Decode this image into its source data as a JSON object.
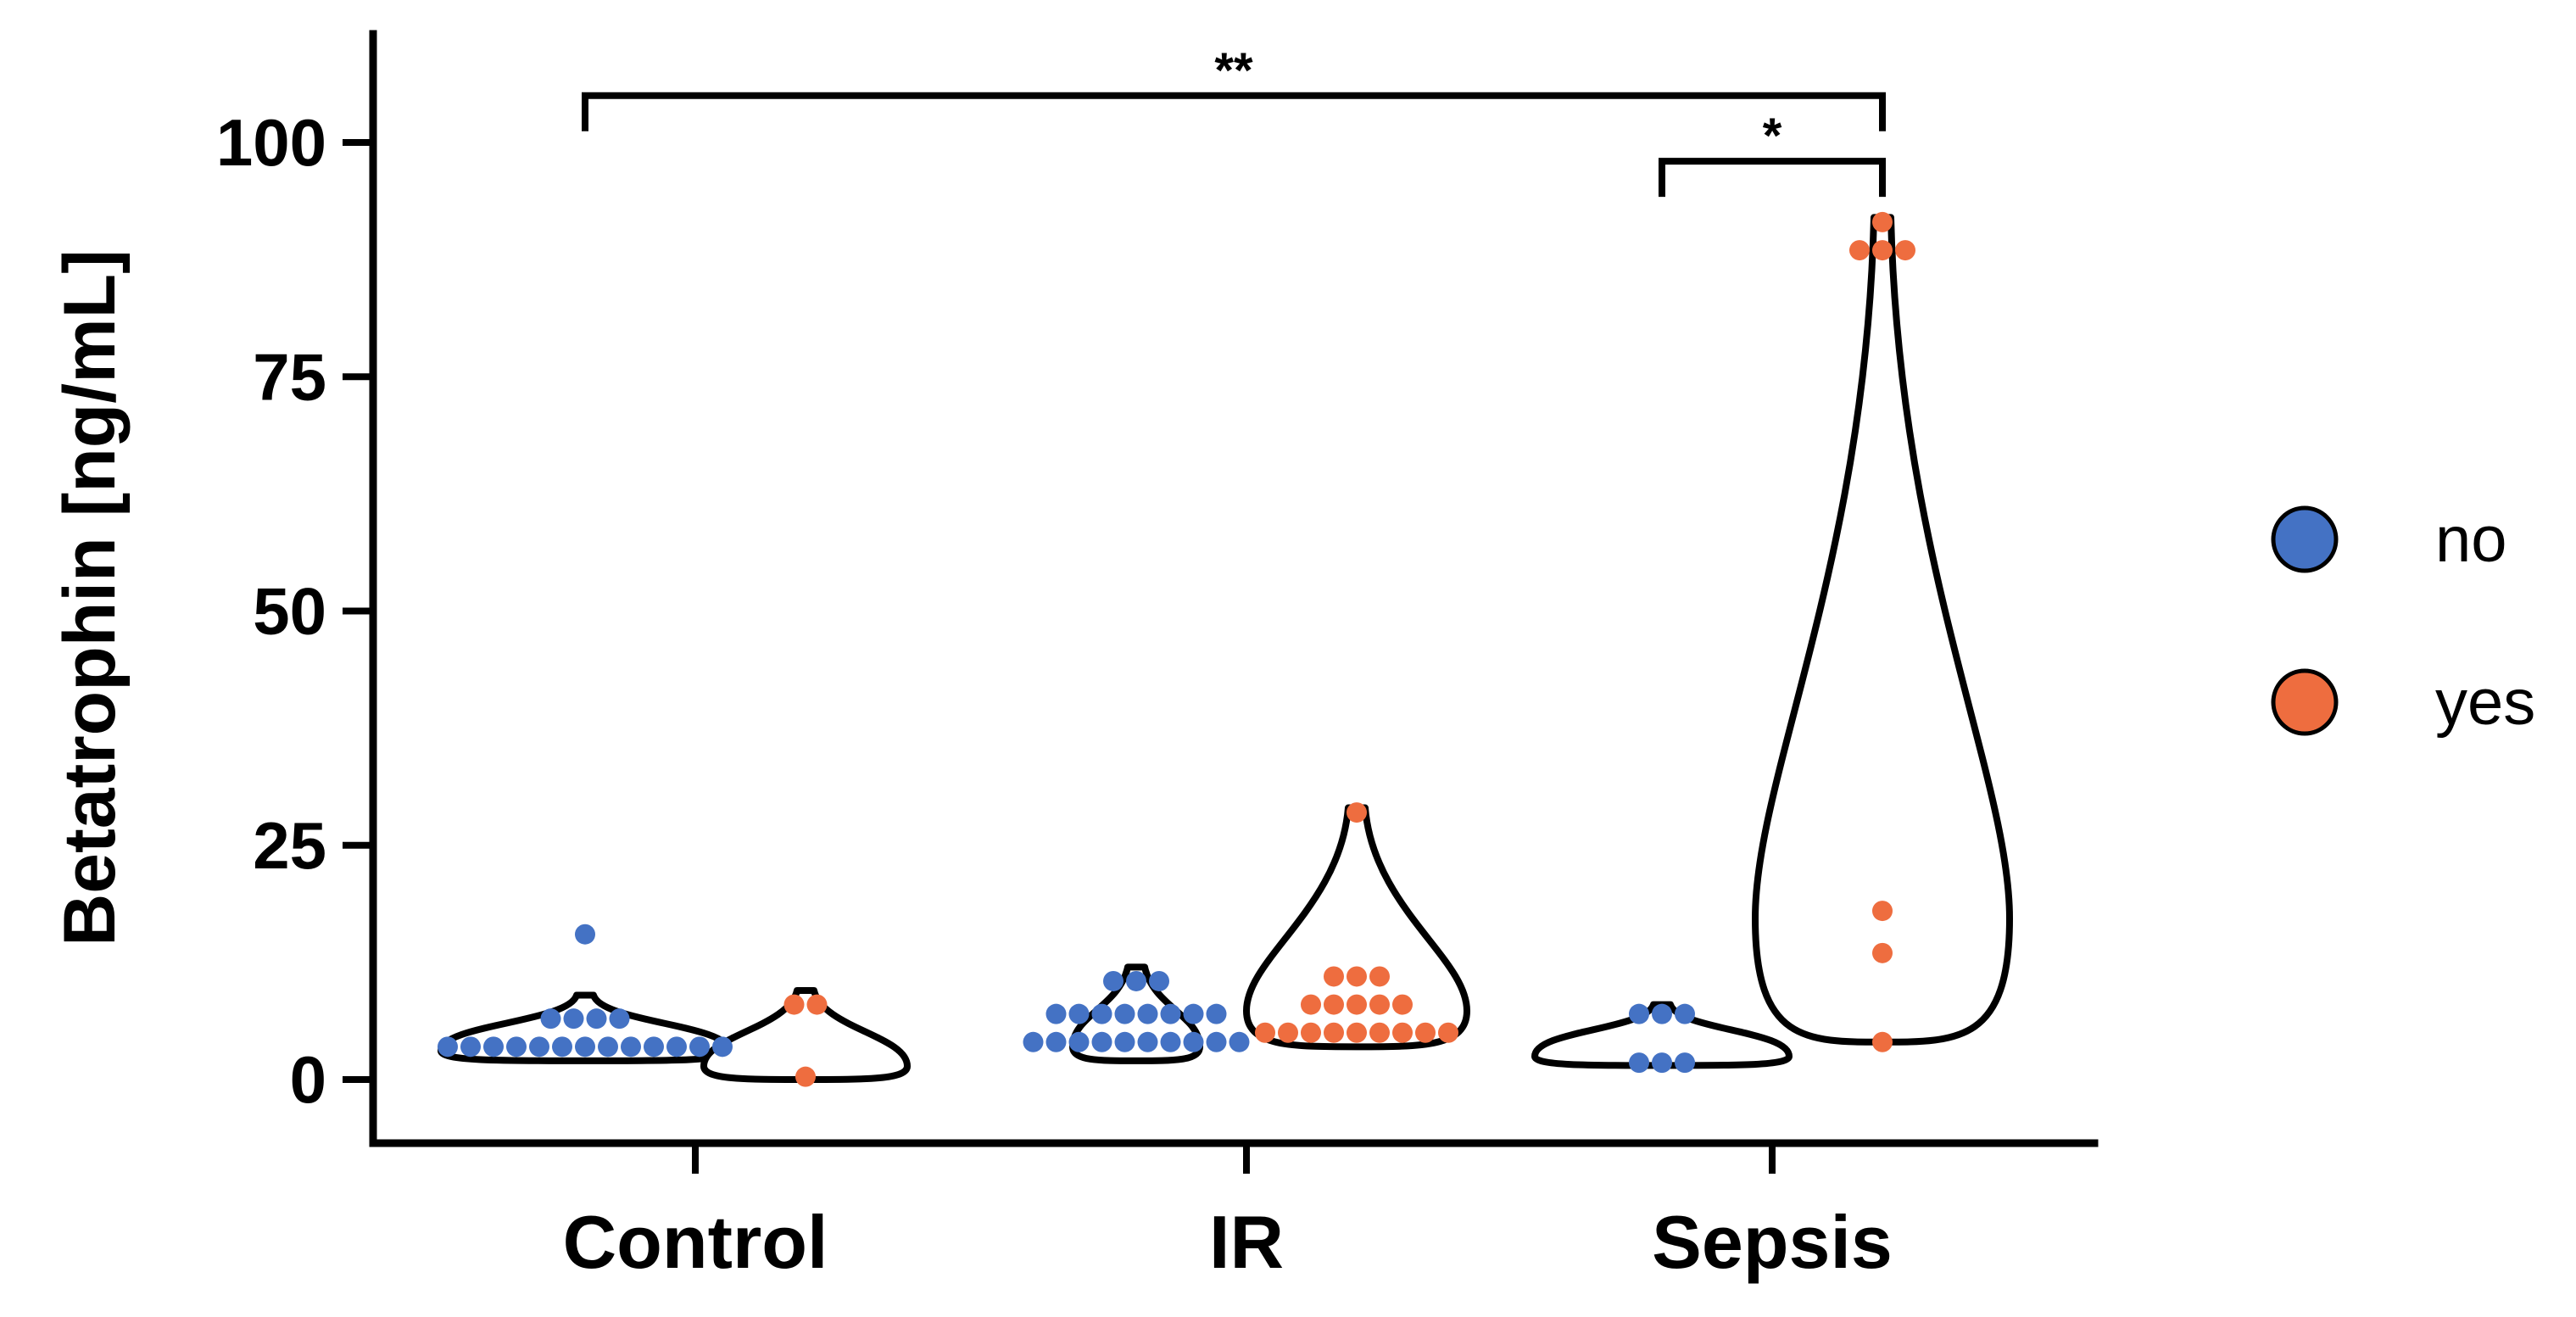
{
  "chart_data": {
    "type": "violin-dot",
    "title": "",
    "xlabel": "",
    "ylabel": "Betatrophin [ng/mL]",
    "ylim": [
      -7,
      110
    ],
    "yticks": [
      0,
      25,
      50,
      75,
      100
    ],
    "categories": [
      "Control",
      "IR",
      "Sepsis"
    ],
    "series": [
      {
        "name": "no",
        "color": "#4472c4",
        "groups": [
          {
            "category": "Control",
            "range": [
              2,
              9
            ],
            "values": [
              3.5,
              3.5,
              3.5,
              3.5,
              3.5,
              3.5,
              3.5,
              3.5,
              3.5,
              3.5,
              3.5,
              3.5,
              3.5,
              6.5,
              6.5,
              6.5,
              6.5,
              15.5
            ]
          },
          {
            "category": "IR",
            "range": [
              2,
              12
            ],
            "values": [
              4,
              4,
              4,
              4,
              4,
              4,
              4,
              4,
              4,
              4,
              7,
              7,
              7,
              7,
              7,
              7,
              7,
              7,
              10.5,
              10.5,
              10.5
            ]
          },
          {
            "category": "Sepsis",
            "range": [
              1.5,
              8
            ],
            "values": [
              1.8,
              1.8,
              1.8,
              7,
              7,
              7
            ]
          }
        ]
      },
      {
        "name": "yes",
        "color": "#ee6d3f",
        "groups": [
          {
            "category": "Control",
            "range": [
              0,
              9.5
            ],
            "values": [
              8,
              8,
              0.3
            ]
          },
          {
            "category": "IR",
            "range": [
              3.5,
              29
            ],
            "values": [
              5,
              5,
              5,
              5,
              5,
              5,
              5,
              5,
              5,
              8,
              8,
              8,
              8,
              8,
              11,
              11,
              11,
              28.5
            ]
          },
          {
            "category": "Sepsis",
            "range": [
              4,
              92
            ],
            "values": [
              91.5,
              88.5,
              88.5,
              88.5,
              18,
              13.5,
              4
            ]
          }
        ]
      }
    ],
    "significance": [
      {
        "from": "Control no",
        "to": "Sepsis yes",
        "y": 105,
        "label": "**"
      },
      {
        "from": "Sepsis no",
        "to": "Sepsis yes",
        "y": 98,
        "label": "*"
      }
    ],
    "legend": {
      "position": "right",
      "entries": [
        "no",
        "yes"
      ]
    }
  }
}
